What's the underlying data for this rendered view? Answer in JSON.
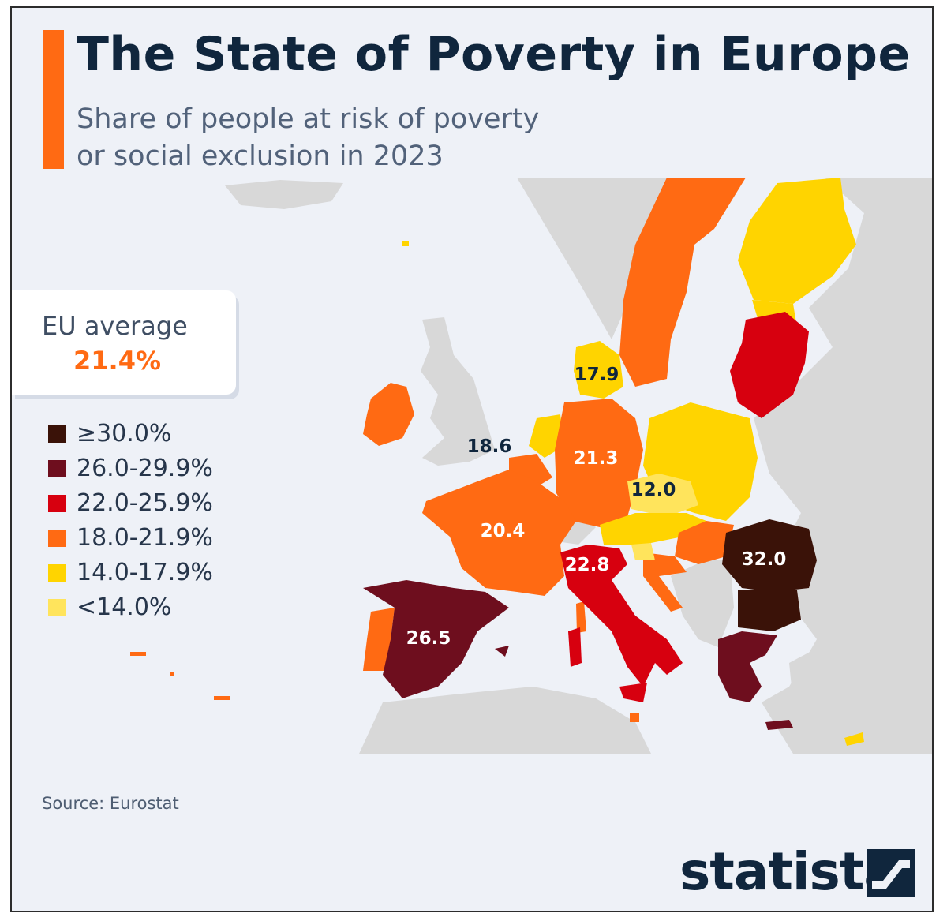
{
  "header": {
    "title": "The State of Poverty in Europe",
    "subtitle_line1": "Share of people at risk of poverty",
    "subtitle_line2": "or social exclusion in 2023"
  },
  "eu_average": {
    "label": "EU average",
    "value": "21.4%"
  },
  "legend": [
    {
      "label": "≥30.0%",
      "color": "#3a1208"
    },
    {
      "label": "26.0-29.9%",
      "color": "#6e0e1e"
    },
    {
      "label": "22.0-25.9%",
      "color": "#d7000f"
    },
    {
      "label": "18.0-21.9%",
      "color": "#ff6a13"
    },
    {
      "label": "14.0-17.9%",
      "color": "#ffd400"
    },
    {
      "label": "<14.0%",
      "color": "#ffe45c"
    }
  ],
  "map_labels": {
    "denmark": "17.9",
    "belgium": "18.6",
    "germany": "21.3",
    "czechia": "12.0",
    "france": "20.4",
    "italy": "22.8",
    "romania": "32.0",
    "spain": "26.5"
  },
  "colors": {
    "accent": "#ff6a13",
    "title": "#10263d",
    "background": "#eef1f7",
    "land_non_eu": "#d8d8d8"
  },
  "source": "Source: Eurostat",
  "brand": "statista"
}
